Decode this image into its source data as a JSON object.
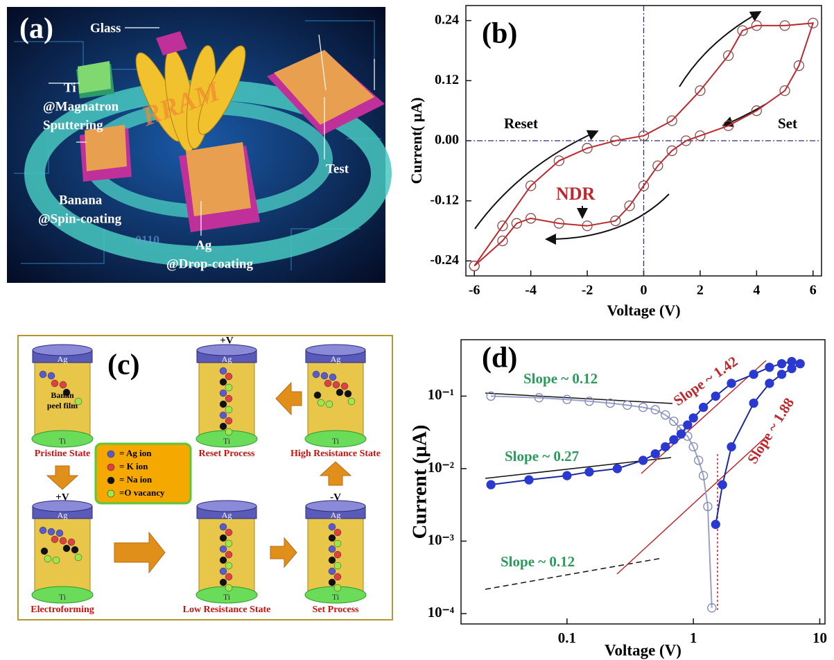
{
  "panel_a": {
    "label": "(a)",
    "glass": "Glass",
    "ti": "Ti",
    "ti_method": "@Magnatron",
    "ti_method_2": "Sputtering",
    "banana": "Banana",
    "banana_method": "@Spin-coating",
    "ag": "Ag",
    "ag_method": "@Drop-coating",
    "test": "Test",
    "watermark": "RRAM",
    "binary": "0110"
  },
  "chart_data": [
    {
      "type": "line",
      "panel_label": "(b)",
      "xlabel": "Voltage (V)",
      "ylabel": "Current( μA)",
      "annotations": [
        "Reset",
        "Set",
        "NDR"
      ],
      "zero_lines": true,
      "xlim": [
        -6.3,
        6.3
      ],
      "ylim": [
        -0.27,
        0.27
      ],
      "xticks": [
        -6,
        -4,
        -2,
        0,
        2,
        4,
        6
      ],
      "yticks": [
        -0.24,
        -0.12,
        {
          "value": 0,
          "label": "0.00"
        },
        0.12,
        0.24
      ],
      "series": [
        {
          "color": "#c0272d",
          "marker_color": "#8a4a4a",
          "marker": "open",
          "x": [
            -6,
            -5,
            -4,
            -3,
            -2,
            -1,
            0,
            1,
            2,
            3,
            3.5,
            4,
            5,
            6,
            5.5,
            5,
            4,
            3,
            2,
            1.5,
            1,
            0.5,
            0,
            -0.5,
            -1,
            -2,
            -3,
            -4,
            -4.5,
            -5,
            -6
          ],
          "values": [
            -0.25,
            -0.17,
            -0.09,
            -0.04,
            -0.015,
            0,
            0.01,
            0.04,
            0.1,
            0.17,
            0.22,
            0.23,
            0.23,
            0.235,
            0.15,
            0.1,
            0.06,
            0.03,
            0.01,
            0,
            -0.02,
            -0.05,
            -0.09,
            -0.13,
            -0.16,
            -0.17,
            -0.165,
            -0.155,
            -0.165,
            -0.2,
            -0.25
          ]
        }
      ]
    },
    {
      "type": "line",
      "panel_label": "(d)",
      "xlabel": "Voltage (V)",
      "ylabel": "Current (μA)",
      "annotations": [
        "Slope ~ 0.12",
        "Slope ~ 0.27",
        "Slope ~ 0.12",
        "Slope ~ 1.42",
        "Slope ~ 1.88"
      ],
      "xlog": true,
      "ylog": true,
      "xlim": [
        0.0145,
        11
      ],
      "ylim": [
        7.2e-05,
        0.6
      ],
      "xticks": [
        0.1,
        1,
        10
      ],
      "yticks": [
        {
          "value": 0.0001,
          "label": "10⁻⁴"
        },
        {
          "value": 0.001,
          "label": "10⁻³"
        },
        {
          "value": 0.01,
          "label": "10⁻²"
        },
        {
          "value": 0.1,
          "label": "10⁻¹"
        }
      ],
      "series": [
        {
          "color": "#9aa0c8",
          "marker_color": "#7d84b8",
          "marker": "open",
          "x": [
            0.025,
            0.06,
            0.1,
            0.15,
            0.22,
            0.3,
            0.4,
            0.5,
            0.6,
            0.7,
            0.8,
            0.9,
            1.0,
            1.1,
            1.2,
            1.3,
            1.4
          ],
          "values": [
            0.1,
            0.095,
            0.09,
            0.085,
            0.08,
            0.075,
            0.07,
            0.065,
            0.055,
            0.045,
            0.035,
            0.028,
            0.02,
            0.013,
            0.008,
            0.003,
            0.00012
          ]
        },
        {
          "color": "#1a2a9a",
          "marker_color": "#2a3ad0",
          "marker": "filled",
          "x": [
            0.025,
            0.05,
            0.1,
            0.15,
            0.25,
            0.4,
            0.5,
            0.6,
            0.7,
            0.8,
            0.9,
            1.0,
            1.2,
            1.5,
            2,
            3,
            4,
            5,
            6,
            7,
            6,
            5,
            4,
            3,
            2,
            1.7,
            1.5
          ],
          "values": [
            0.006,
            0.007,
            0.008,
            0.009,
            0.01,
            0.013,
            0.016,
            0.02,
            0.025,
            0.03,
            0.04,
            0.05,
            0.07,
            0.1,
            0.15,
            0.2,
            0.25,
            0.28,
            0.3,
            0.28,
            0.24,
            0.2,
            0.15,
            0.08,
            0.02,
            0.006,
            0.0017
          ]
        }
      ]
    }
  ],
  "panel_c": {
    "label": "(c)",
    "film": [
      "Banan",
      "peel  film"
    ],
    "voltages": [
      "+V",
      "+V",
      "-V"
    ],
    "cells": [
      {
        "top": "Ag",
        "bottom": "Ti",
        "caption": "Pristine State"
      },
      {
        "top": "Ag",
        "bottom": "Ti",
        "caption": "Reset Process"
      },
      {
        "top": "Ag",
        "bottom": "Ti",
        "caption": "High Resistance State"
      },
      {
        "top": "Ag",
        "bottom": "Ti",
        "caption": "Electroforming"
      },
      {
        "top": "Ag",
        "bottom": "Ti",
        "caption": "Low Resistance State"
      },
      {
        "top": "Ag",
        "bottom": "Ti",
        "caption": "Set Process"
      }
    ],
    "legend": [
      {
        "color": "#5a5ad0",
        "text": "= Ag ion"
      },
      {
        "color": "#e04040",
        "text": "= K ion"
      },
      {
        "color": "#111111",
        "text": "= Na ion"
      },
      {
        "color": "#9be84a",
        "text": "=O vacancy"
      }
    ]
  }
}
